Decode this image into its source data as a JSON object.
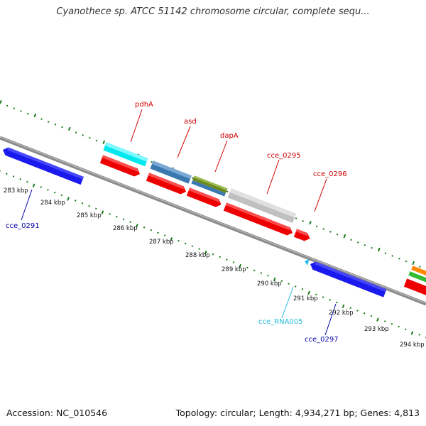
{
  "title": "Cyanothece sp. ATCC 51142 chromosome circular, complete sequ...",
  "footer": {
    "accession": "Accession: NC_010546",
    "topology": "Topology: circular; Length: 4,934,271 bp; Genes: 4,813"
  },
  "kbp_labels": [
    "283 kbp",
    "284 kbp",
    "285 kbp",
    "286 kbp",
    "287 kbp",
    "288 kbp",
    "289 kbp",
    "290 kbp",
    "291 kbp",
    "292 kbp",
    "293 kbp",
    "294 kbp"
  ],
  "gene_labels": {
    "pdhA": "pdhA",
    "asd": "asd",
    "dapA": "dapA",
    "cce_0295": "cce_0295",
    "cce_0296": "cce_0296",
    "cce_0291": "cce_0291",
    "cce_RNA005": "cce_RNA005",
    "cce_0297": "cce_0297"
  },
  "colors": {
    "forward_label": "#cc0000",
    "reverse_label": "#0000aa",
    "rna_label": "#22bbdd",
    "backbone": "#888888",
    "tick": "#1a7a1a"
  }
}
